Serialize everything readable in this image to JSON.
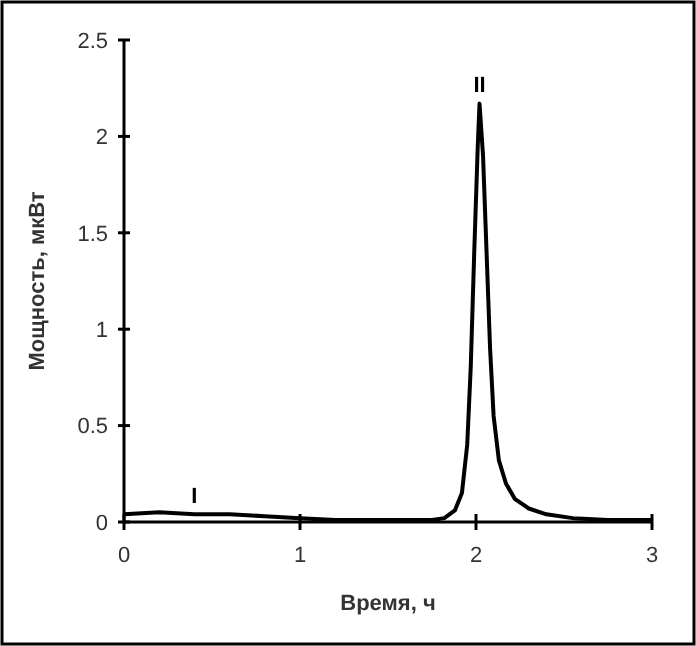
{
  "chart_data": {
    "type": "line",
    "xlabel": "Время, ч",
    "ylabel": "Мощность, мкВт",
    "x": [
      0,
      0.2,
      0.4,
      0.6,
      0.8,
      1.0,
      1.2,
      1.4,
      1.6,
      1.75,
      1.82,
      1.88,
      1.92,
      1.95,
      1.97,
      1.99,
      2.01,
      2.02,
      2.04,
      2.06,
      2.08,
      2.1,
      2.13,
      2.17,
      2.22,
      2.3,
      2.4,
      2.55,
      2.75,
      3.0
    ],
    "series": [
      {
        "color": "#000000",
        "values": [
          0.04,
          0.05,
          0.04,
          0.04,
          0.03,
          0.02,
          0.01,
          0.01,
          0.01,
          0.01,
          0.02,
          0.06,
          0.15,
          0.4,
          0.8,
          1.4,
          1.95,
          2.17,
          1.9,
          1.4,
          0.9,
          0.55,
          0.32,
          0.2,
          0.12,
          0.07,
          0.04,
          0.02,
          0.01,
          0.01
        ]
      }
    ],
    "xlim": [
      0,
      3
    ],
    "xticks": [
      0,
      1,
      2,
      3
    ],
    "ylim": [
      0,
      2.5
    ],
    "yticks": [
      0,
      0.5,
      1,
      1.5,
      2,
      2.5
    ],
    "annotations": [
      {
        "text": "I",
        "x": 0.4,
        "y": 0.07
      },
      {
        "text": "II",
        "x": 2.02,
        "y": 2.2
      }
    ],
    "marker": "none",
    "line_style": "solid"
  }
}
